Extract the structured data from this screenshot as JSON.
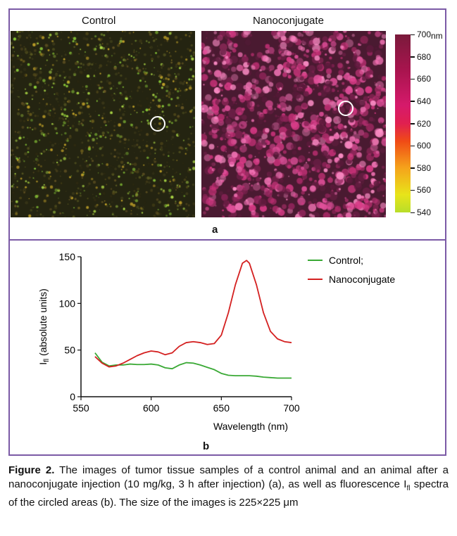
{
  "panel_a": {
    "left_title": "Control",
    "right_title": "Nanoconjugate",
    "colorbar": {
      "unit": "nm",
      "ticks": [
        "700",
        "680",
        "660",
        "640",
        "620",
        "600",
        "580",
        "560",
        "540"
      ],
      "colors": [
        "#7a1a3b",
        "#a8144e",
        "#d61a6b",
        "#e02050",
        "#f04b16",
        "#f5a31b",
        "#e8e41a",
        "#b8de2a"
      ]
    },
    "label": "a"
  },
  "panel_b_label": "b",
  "chart_data": {
    "type": "line",
    "xlabel": "Wavelength (nm)",
    "ylabel_main": "I",
    "ylabel_sub": "fl",
    "ylabel_rest": " (absolute units)",
    "xlim": [
      550,
      700
    ],
    "ylim": [
      0,
      150
    ],
    "xticks": [
      "550",
      "600",
      "650",
      "700"
    ],
    "yticks": [
      "0",
      "50",
      "100",
      "150"
    ],
    "legend_position": "top-right",
    "series": [
      {
        "name": "Control;",
        "color": "#3aa935",
        "x": [
          560,
          565,
          570,
          575,
          580,
          585,
          590,
          595,
          600,
          605,
          610,
          615,
          620,
          625,
          630,
          635,
          640,
          645,
          650,
          655,
          660,
          665,
          670,
          675,
          680,
          685,
          690,
          695,
          700
        ],
        "y": [
          47,
          37,
          33,
          34,
          34,
          35,
          34.5,
          34.5,
          35,
          34,
          31,
          30,
          34,
          36.5,
          36,
          34,
          31.5,
          29,
          25,
          23,
          22.5,
          22.5,
          22.5,
          22,
          21,
          20.5,
          20,
          20,
          20
        ]
      },
      {
        "name": "Nanoconjugate",
        "color": "#d42020",
        "x": [
          560,
          565,
          570,
          575,
          580,
          585,
          590,
          595,
          600,
          605,
          610,
          615,
          620,
          625,
          630,
          635,
          640,
          645,
          650,
          655,
          660,
          665,
          668,
          670,
          675,
          680,
          685,
          690,
          695,
          700
        ],
        "y": [
          43,
          36,
          32,
          33,
          36,
          40,
          44,
          47,
          49,
          48,
          45,
          47,
          54,
          58,
          59,
          58,
          56,
          57,
          66,
          90,
          120,
          143,
          146,
          143,
          120,
          90,
          70,
          62,
          59,
          58
        ]
      }
    ]
  },
  "caption": {
    "figure_label": "Figure 2.",
    "text_1": " The images of tumor tissue samples of a control animal and an animal after a nanoconjugate injection (10 mg/kg, 3 h after injection) (a), as well as fluorescence I",
    "sub": "fl",
    "text_2": " spectra of the circled areas (b). The size of the images is 225×225 μm"
  }
}
